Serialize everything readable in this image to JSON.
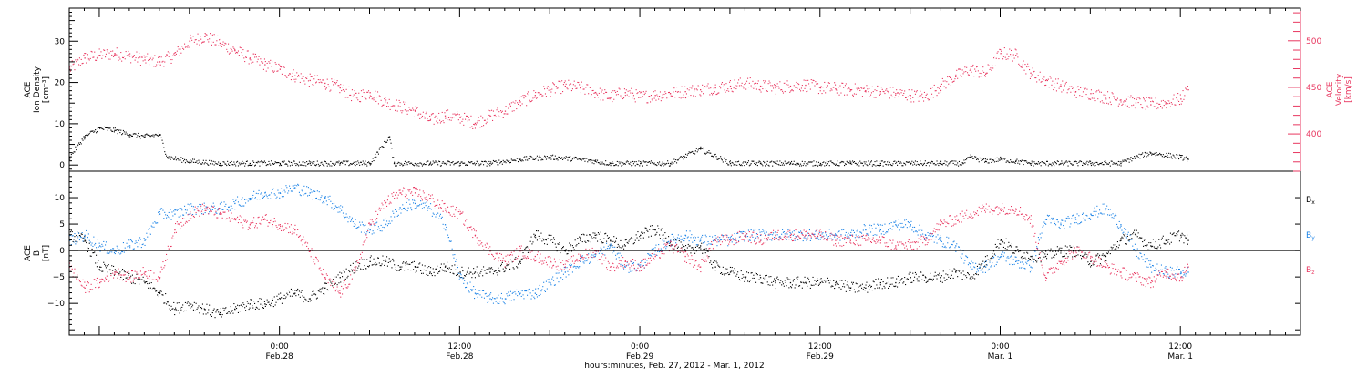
{
  "colors": {
    "black": "#000000",
    "blue": "#1a82e6",
    "pink": "#e8365f"
  },
  "chart_data": [
    {
      "type": "scatter",
      "panel": "top",
      "xlabel": "hours:minutes, Feb. 27, 2012 - Mar.  1, 2012",
      "x_ticks": [
        {
          "hour": 24,
          "time": "0:00",
          "date": "Feb.28"
        },
        {
          "hour": 36,
          "time": "12:00",
          "date": "Feb.28"
        },
        {
          "hour": 48,
          "time": "0:00",
          "date": "Feb.29"
        },
        {
          "hour": 60,
          "time": "12:00",
          "date": "Feb.29"
        },
        {
          "hour": 72,
          "time": "0:00",
          "date": "Mar. 1"
        },
        {
          "hour": 84,
          "time": "12:00",
          "date": "Mar. 1"
        }
      ],
      "xlim_hours": [
        10,
        92
      ],
      "left_axis": {
        "label_lines": [
          "ACE",
          "Ion Density",
          "[cm⁻³]"
        ],
        "ylim": [
          -1.5,
          38
        ],
        "ticks": [
          0,
          10,
          20,
          30
        ],
        "color": "#000000"
      },
      "right_axis": {
        "label_lines": [
          "ACE",
          "Velocity",
          "[km/s]"
        ],
        "ylim": [
          360,
          535
        ],
        "ticks": [
          400,
          450,
          500
        ],
        "color": "#e8365f"
      },
      "series": [
        {
          "axis": "left",
          "color": "#000000",
          "x": [
            10,
            11,
            12,
            13,
            14,
            15,
            16,
            16.5,
            18,
            20,
            22,
            24,
            26,
            28,
            30,
            31.3,
            31.6,
            34,
            36,
            38,
            40,
            42,
            44,
            45,
            46,
            48,
            50,
            52,
            54,
            56,
            58,
            58.5,
            60,
            62,
            64,
            66,
            68,
            69.5,
            70,
            71,
            72,
            73,
            74,
            76,
            78,
            80,
            81,
            82,
            84,
            84.5
          ],
          "y": [
            2,
            7,
            9,
            8.5,
            7.5,
            7,
            7.5,
            2,
            1,
            0.5,
            0.5,
            0.5,
            0.5,
            0.5,
            0.5,
            7,
            0.5,
            0.5,
            0.5,
            0.5,
            1.5,
            2,
            1.5,
            1,
            0.5,
            0.5,
            0.5,
            4,
            0.5,
            0.5,
            0.5,
            0.5,
            0.5,
            0.5,
            0.5,
            0.5,
            0.5,
            0.5,
            2,
            1,
            1.5,
            1,
            0.5,
            0.5,
            0.5,
            0.5,
            2,
            3,
            2,
            1.5
          ]
        },
        {
          "axis": "right",
          "color": "#e8365f",
          "x": [
            10,
            11,
            12,
            13,
            14,
            15,
            16,
            17,
            18,
            19,
            20,
            21,
            22,
            23,
            24,
            25,
            26,
            27,
            28,
            29,
            30,
            31,
            32,
            33,
            34,
            35,
            36,
            37,
            38,
            39,
            40,
            41,
            42,
            43,
            44,
            45,
            46,
            47,
            48,
            49,
            50,
            51,
            52,
            53,
            54,
            55,
            56,
            57,
            58,
            59,
            60,
            61,
            62,
            63,
            64,
            65,
            66,
            67,
            68,
            69,
            70,
            71,
            72,
            73,
            74,
            75,
            76,
            77,
            78,
            79,
            80,
            81,
            82,
            83,
            84,
            84.5
          ],
          "y": [
            470,
            482,
            485,
            487,
            484,
            480,
            478,
            485,
            500,
            505,
            498,
            490,
            482,
            475,
            470,
            463,
            458,
            455,
            450,
            440,
            445,
            435,
            430,
            425,
            415,
            420,
            418,
            412,
            420,
            425,
            435,
            442,
            448,
            452,
            450,
            445,
            440,
            445,
            440,
            442,
            444,
            446,
            448,
            450,
            452,
            455,
            452,
            450,
            452,
            453,
            450,
            449,
            448,
            447,
            446,
            444,
            442,
            440,
            452,
            462,
            470,
            465,
            487,
            485,
            466,
            458,
            452,
            446,
            444,
            440,
            437,
            434,
            432,
            434,
            438,
            448
          ]
        }
      ]
    },
    {
      "type": "scatter",
      "panel": "bottom",
      "xlim_hours": [
        10,
        92
      ],
      "left_axis": {
        "label_lines": [
          "ACE",
          "B",
          "[nT]"
        ],
        "ylim": [
          -16,
          15
        ],
        "ticks": [
          -10,
          -5,
          0,
          5,
          10
        ],
        "color": "#000000"
      },
      "zero_line": true,
      "series": [
        {
          "name": "B",
          "subscript": "x",
          "color": "#000000",
          "x": [
            10,
            11,
            12,
            13,
            14,
            15,
            16,
            17,
            18,
            19,
            20,
            21,
            22,
            23,
            24,
            25,
            26,
            27,
            28,
            29,
            30,
            31,
            32,
            33,
            34,
            35,
            36,
            37,
            38,
            39,
            40,
            41,
            42,
            43,
            44,
            45,
            46,
            47,
            48,
            49,
            50,
            51,
            52,
            53,
            54,
            55,
            56,
            57,
            58,
            59,
            60,
            61,
            62,
            63,
            64,
            65,
            66,
            67,
            68,
            69,
            70,
            71,
            72,
            73,
            74,
            75,
            76,
            77,
            78,
            79,
            80,
            81,
            82,
            83,
            84,
            84.5
          ],
          "y": [
            3,
            2,
            -3,
            -4,
            -5,
            -6,
            -8,
            -11,
            -10,
            -11,
            -12,
            -11,
            -10,
            -10,
            -9,
            -8,
            -9,
            -7,
            -5,
            -3,
            -2,
            -2,
            -3,
            -3,
            -4,
            -3,
            -4,
            -4,
            -4,
            -3,
            -2,
            3,
            2,
            0,
            2,
            3,
            2,
            1,
            3,
            4,
            2,
            0,
            1,
            -3,
            -4,
            -5,
            -5,
            -6,
            -6,
            -6,
            -6,
            -6,
            -7,
            -7,
            -6,
            -6,
            -5,
            -5,
            -5,
            -4,
            -5,
            -2,
            2,
            0,
            -1,
            -1,
            0,
            0,
            -2,
            -1,
            2,
            3,
            1,
            2,
            3,
            2
          ]
        },
        {
          "name": "B",
          "subscript": "y",
          "color": "#1a82e6",
          "x": [
            10,
            11,
            12,
            13,
            14,
            15,
            16,
            17,
            18,
            19,
            20,
            21,
            22,
            23,
            24,
            25,
            26,
            27,
            28,
            29,
            30,
            31,
            32,
            33,
            34,
            35,
            36,
            37,
            38,
            39,
            40,
            41,
            42,
            43,
            44,
            45,
            46,
            47,
            48,
            49,
            50,
            51,
            52,
            53,
            54,
            55,
            56,
            57,
            58,
            59,
            60,
            61,
            62,
            63,
            64,
            65,
            66,
            67,
            68,
            69,
            70,
            71,
            72,
            73,
            74,
            75,
            76,
            77,
            78,
            79,
            80,
            81,
            82,
            83,
            84,
            84.5
          ],
          "y": [
            2,
            3,
            1,
            0,
            1,
            2,
            7,
            7,
            8,
            8,
            8,
            9,
            10,
            11,
            11,
            12,
            11,
            10,
            8,
            5,
            4,
            5,
            8,
            9,
            8,
            5,
            -5,
            -8,
            -9,
            -9,
            -8,
            -8,
            -6,
            -4,
            -2,
            -1,
            1,
            -3,
            -3,
            0,
            2,
            3,
            2,
            2,
            2,
            3,
            3,
            3,
            3,
            3,
            3,
            3,
            3,
            4,
            4,
            5,
            5,
            3,
            2,
            1,
            -3,
            -3,
            -1,
            -2,
            -3,
            6,
            5,
            6,
            7,
            8,
            5,
            0,
            -3,
            -4,
            -4,
            -4
          ]
        },
        {
          "name": "B",
          "subscript": "z",
          "color": "#e8365f",
          "x": [
            10,
            11,
            12,
            13,
            14,
            15,
            16,
            17,
            18,
            19,
            20,
            21,
            22,
            23,
            24,
            25,
            26,
            27,
            28,
            29,
            30,
            31,
            32,
            33,
            34,
            35,
            36,
            37,
            38,
            39,
            40,
            41,
            42,
            43,
            44,
            45,
            46,
            47,
            48,
            49,
            50,
            51,
            52,
            53,
            54,
            55,
            56,
            57,
            58,
            59,
            60,
            61,
            62,
            63,
            64,
            65,
            66,
            67,
            68,
            69,
            70,
            71,
            72,
            73,
            74,
            75,
            76,
            77,
            78,
            79,
            80,
            81,
            82,
            83,
            84,
            84.5
          ],
          "y": [
            -3,
            -7,
            -6,
            -4,
            -5,
            -4,
            -5,
            4,
            7,
            8,
            7,
            6,
            5,
            6,
            5,
            4,
            0,
            -5,
            -8,
            -4,
            5,
            9,
            11,
            11,
            10,
            8,
            7,
            3,
            0,
            -2,
            0,
            -1,
            -2,
            -3,
            -1,
            0,
            -3,
            -2,
            -3,
            -1,
            1,
            -1,
            -3,
            2,
            2,
            3,
            2,
            3,
            3,
            3,
            3,
            2,
            2,
            2,
            2,
            1,
            1,
            2,
            5,
            6,
            7,
            8,
            8,
            8,
            6,
            -5,
            -2,
            0,
            -1,
            -3,
            -4,
            -5,
            -6,
            -4,
            -5,
            -3
          ]
        }
      ]
    }
  ]
}
